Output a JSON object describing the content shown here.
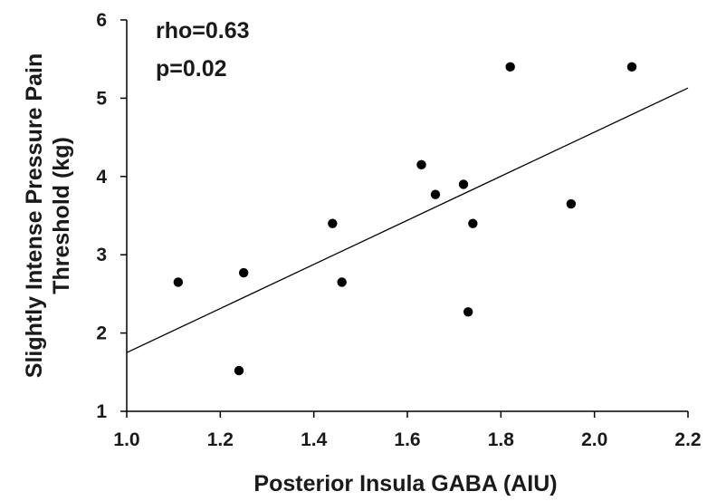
{
  "chart_data": {
    "type": "scatter",
    "title": "",
    "xlabel": "Posterior Insula GABA (AIU)",
    "ylabel_lines": [
      "Slightly Intense Pressure Pain",
      "Threshold (kg)"
    ],
    "xlim": [
      1.0,
      2.2
    ],
    "ylim": [
      1,
      6
    ],
    "x_ticks": [
      "1.0",
      "1.2",
      "1.4",
      "1.6",
      "1.8",
      "2.0",
      "2.2"
    ],
    "y_ticks": [
      "1",
      "2",
      "3",
      "4",
      "5",
      "6"
    ],
    "grid": false,
    "points": [
      {
        "x": 1.11,
        "y": 2.65
      },
      {
        "x": 1.24,
        "y": 1.52
      },
      {
        "x": 1.25,
        "y": 2.77
      },
      {
        "x": 1.44,
        "y": 3.4
      },
      {
        "x": 1.46,
        "y": 2.65
      },
      {
        "x": 1.63,
        "y": 4.15
      },
      {
        "x": 1.66,
        "y": 3.77
      },
      {
        "x": 1.72,
        "y": 3.9
      },
      {
        "x": 1.73,
        "y": 2.27
      },
      {
        "x": 1.74,
        "y": 3.4
      },
      {
        "x": 1.82,
        "y": 5.4
      },
      {
        "x": 1.95,
        "y": 3.65
      },
      {
        "x": 2.08,
        "y": 5.4
      }
    ],
    "trendline": {
      "x": [
        1.0,
        2.2
      ],
      "y": [
        1.75,
        5.13
      ]
    },
    "annotations": [
      "rho=0.63",
      "p=0.02"
    ],
    "colors": {
      "points": "#000000",
      "line": "#000000",
      "axes": "#000000"
    }
  }
}
